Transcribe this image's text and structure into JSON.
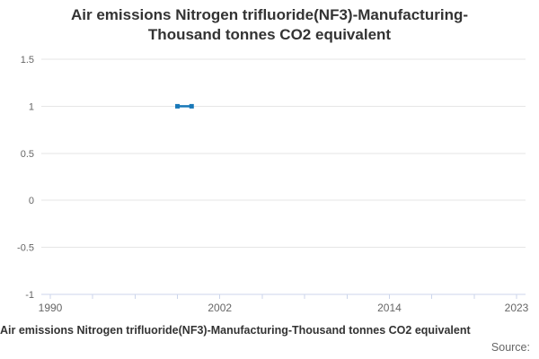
{
  "title_lines": [
    "Air emissions Nitrogen trifluoride(NF3)-Manufacturing-",
    "Thousand tonnes CO2 equivalent"
  ],
  "footer": {
    "title": "Air emissions Nitrogen trifluoride(NF3)-Manufacturing-Thousand tonnes CO2 equivalent",
    "source_label": "Source:"
  },
  "colors": {
    "series": "#1878b8",
    "grid": "#e6e6e6",
    "axis": "#ccd6eb",
    "label": "#666666",
    "title": "#333333"
  },
  "chart_data": {
    "type": "line",
    "title": "Air emissions Nitrogen trifluoride(NF3)-Manufacturing-Thousand tonnes CO2 equivalent",
    "x": [
      1999,
      2000
    ],
    "series": [
      {
        "name": "Air emissions Nitrogen trifluoride(NF3)-Manufacturing-Thousand tonnes CO2 equivalent",
        "values": [
          1,
          1
        ]
      }
    ],
    "xlabel": "",
    "ylabel": "",
    "marker": "square",
    "grid": true,
    "legend": false,
    "x_axis": {
      "range": [
        1989.4,
        2023.6
      ],
      "tick_years": [
        1990,
        1993,
        1996,
        1999,
        2002,
        2005,
        2008,
        2011,
        2014,
        2017,
        2020,
        2023
      ],
      "labeled_ticks": [
        1990,
        2002,
        2014,
        2023
      ]
    },
    "y_axis": {
      "range": [
        -1,
        1.5
      ],
      "tick_interval": 0.5,
      "ticks": [
        1.5,
        1,
        0.5,
        0,
        -0.5,
        -1
      ]
    }
  }
}
